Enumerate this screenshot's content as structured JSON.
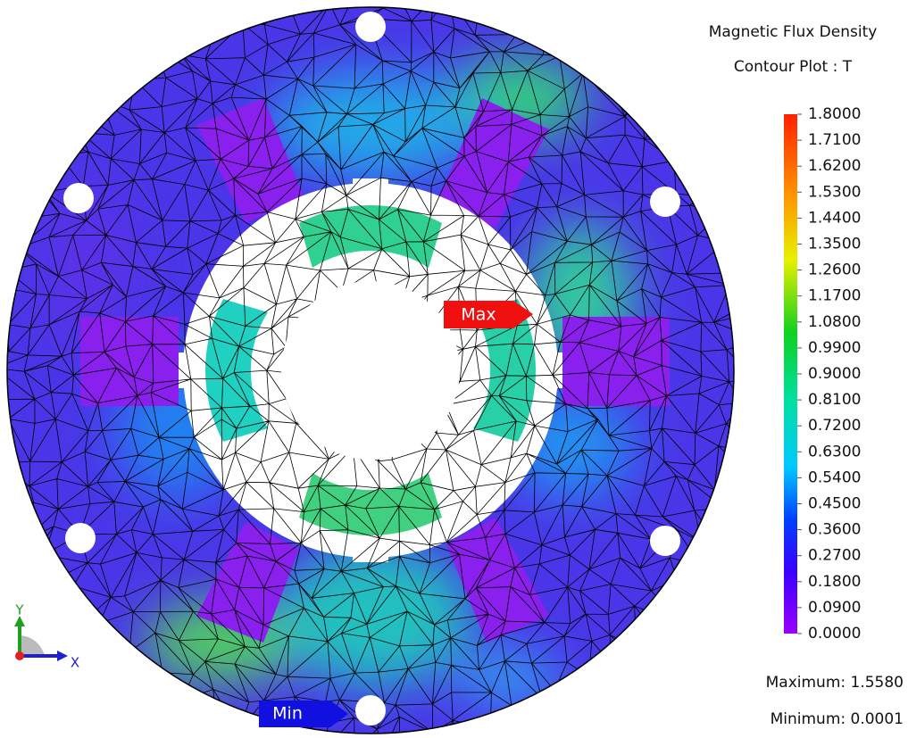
{
  "title": "Magnetic Flux Density",
  "subtitle": "Contour Plot : T",
  "legend": {
    "ticks": [
      {
        "value": 1.8,
        "label": "1.8000"
      },
      {
        "value": 1.71,
        "label": "1.7100"
      },
      {
        "value": 1.62,
        "label": "1.6200"
      },
      {
        "value": 1.53,
        "label": "1.5300"
      },
      {
        "value": 1.44,
        "label": "1.4400"
      },
      {
        "value": 1.35,
        "label": "1.3500"
      },
      {
        "value": 1.26,
        "label": "1.2600"
      },
      {
        "value": 1.17,
        "label": "1.1700"
      },
      {
        "value": 1.08,
        "label": "1.0800"
      },
      {
        "value": 0.99,
        "label": "0.9900"
      },
      {
        "value": 0.9,
        "label": "0.9000"
      },
      {
        "value": 0.81,
        "label": "0.8100"
      },
      {
        "value": 0.72,
        "label": "0.7200"
      },
      {
        "value": 0.63,
        "label": "0.6300"
      },
      {
        "value": 0.54,
        "label": "0.5400"
      },
      {
        "value": 0.45,
        "label": "0.4500"
      },
      {
        "value": 0.36,
        "label": "0.3600"
      },
      {
        "value": 0.27,
        "label": "0.2700"
      },
      {
        "value": 0.18,
        "label": "0.1800"
      },
      {
        "value": 0.09,
        "label": "0.0900"
      },
      {
        "value": 0,
        "label": "0.0000"
      }
    ]
  },
  "summary": {
    "maximum": "Maximum: 1.5580",
    "minimum": "Minimum: 0.0001"
  },
  "markers": {
    "max": "Max",
    "min": "Min"
  },
  "axes": {
    "y": "Y",
    "x": "X"
  }
}
